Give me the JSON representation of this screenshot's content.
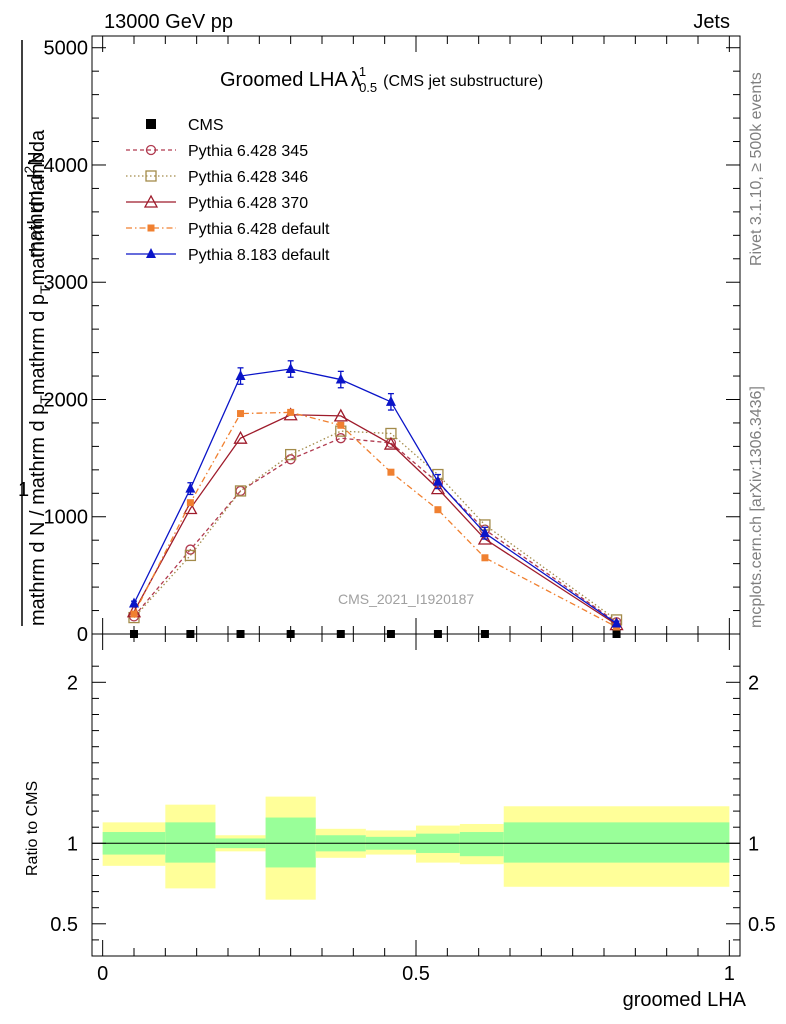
{
  "header": {
    "left": "13000 GeV pp",
    "right": "Jets"
  },
  "side_labels": {
    "rivet": "Rivet 3.1.10, ≥ 500k events",
    "mcplots": "mcplots.cern.ch [arXiv:1306.3436]"
  },
  "chart_data": [
    {
      "type": "line",
      "title_main": "Groomed LHA",
      "title_symbol": "λ",
      "title_sup": "1",
      "title_sub": "0.5",
      "title_suffix": "(CMS jet substructure)",
      "ylabel_top": "1",
      "ylabel_numerator": "mathrm d",
      "ylabel_numerator_sup": "2",
      "ylabel_numerator_tail": "N",
      "ylabel_denominator": "mathrm d N / mathrm d p",
      "ylabel_denominator_sub": "T",
      "ylabel_denominator_tail": "mathrm d p",
      "ylabel_denominator_sub2": "T",
      "ylabel_denominator_tail2": "mathrm d lambda",
      "watermark": "CMS_2021_I1920187",
      "xlim": [
        0,
        1
      ],
      "ylim": [
        0,
        5100
      ],
      "yticks": [
        0,
        1000,
        2000,
        3000,
        4000,
        5000
      ],
      "ytick_labels": [
        "0",
        "1000",
        "2000",
        "3000",
        "4000",
        "5000"
      ],
      "x": [
        0.05,
        0.14,
        0.22,
        0.3,
        0.38,
        0.46,
        0.535,
        0.61,
        0.82
      ],
      "series": [
        {
          "name": "CMS",
          "color": "#000000",
          "style": "data",
          "values": [
            0,
            0,
            0,
            0,
            0,
            0,
            0,
            0,
            0
          ]
        },
        {
          "name": "Pythia 6.428 345",
          "color": "#b03a4f",
          "dash": "4,3",
          "marker": "circle-open",
          "values": [
            150,
            720,
            1220,
            1490,
            1670,
            1630,
            1290,
            890,
            100
          ]
        },
        {
          "name": "Pythia 6.428 346",
          "color": "#a38b4a",
          "dash": "1.5,2.5",
          "marker": "square-open",
          "values": [
            140,
            670,
            1220,
            1530,
            1730,
            1710,
            1360,
            930,
            120
          ]
        },
        {
          "name": "Pythia 6.428 370",
          "color": "#9e1b2b",
          "dash": "",
          "marker": "triangle-open",
          "values": [
            190,
            1070,
            1670,
            1870,
            1860,
            1620,
            1240,
            810,
            80
          ]
        },
        {
          "name": "Pythia 6.428 default",
          "color": "#f08030",
          "dash": "6,3,1.5,3",
          "marker": "square-filled",
          "values": [
            170,
            1120,
            1880,
            1890,
            1780,
            1380,
            1060,
            650,
            60
          ]
        },
        {
          "name": "Pythia 8.183 default",
          "color": "#0a14c8",
          "dash": "",
          "marker": "triangle-filled",
          "values": [
            260,
            1240,
            2200,
            2260,
            2170,
            1980,
            1300,
            860,
            90
          ],
          "errors": [
            20,
            50,
            70,
            70,
            70,
            70,
            60,
            50,
            20
          ]
        }
      ]
    },
    {
      "type": "area",
      "ylabel": "Ratio to CMS",
      "xlabel": "groomed LHA",
      "xlim": [
        0,
        1
      ],
      "ylim": [
        0.3,
        2.3
      ],
      "yticks": [
        0.5,
        1,
        2
      ],
      "ytick_labels": [
        "0.5",
        "1",
        "2"
      ],
      "xticks": [
        0,
        0.5,
        1
      ],
      "xtick_labels": [
        "0",
        "0.5",
        "1"
      ],
      "reference": 1,
      "bands": [
        {
          "x0": 0.0,
          "x1": 0.1,
          "green": [
            0.93,
            1.07
          ],
          "yellow": [
            0.86,
            1.13
          ]
        },
        {
          "x0": 0.1,
          "x1": 0.18,
          "green": [
            0.88,
            1.13
          ],
          "yellow": [
            0.72,
            1.24
          ]
        },
        {
          "x0": 0.18,
          "x1": 0.26,
          "green": [
            0.97,
            1.03
          ],
          "yellow": [
            0.95,
            1.05
          ]
        },
        {
          "x0": 0.26,
          "x1": 0.34,
          "green": [
            0.85,
            1.16
          ],
          "yellow": [
            0.65,
            1.29
          ]
        },
        {
          "x0": 0.34,
          "x1": 0.42,
          "green": [
            0.95,
            1.05
          ],
          "yellow": [
            0.91,
            1.09
          ]
        },
        {
          "x0": 0.42,
          "x1": 0.5,
          "green": [
            0.96,
            1.04
          ],
          "yellow": [
            0.93,
            1.08
          ]
        },
        {
          "x0": 0.5,
          "x1": 0.57,
          "green": [
            0.94,
            1.06
          ],
          "yellow": [
            0.88,
            1.11
          ]
        },
        {
          "x0": 0.57,
          "x1": 0.64,
          "green": [
            0.92,
            1.07
          ],
          "yellow": [
            0.87,
            1.12
          ]
        },
        {
          "x0": 0.64,
          "x1": 1.0,
          "green": [
            0.88,
            1.13
          ],
          "yellow": [
            0.73,
            1.23
          ]
        }
      ],
      "green_color": "#99ff99",
      "yellow_color": "#ffff99"
    }
  ]
}
